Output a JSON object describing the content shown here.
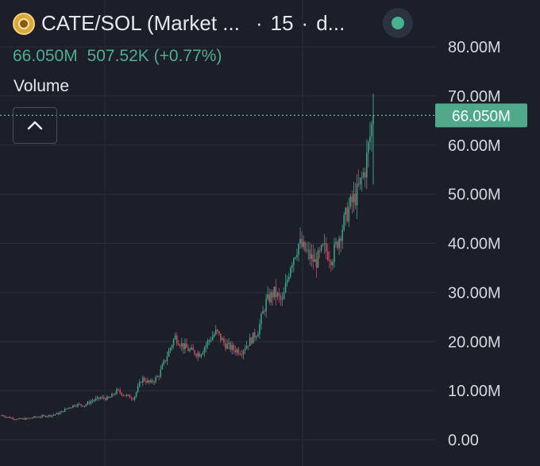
{
  "header": {
    "pair": "CATE/SOL (Market ...",
    "interval": "15",
    "extra": "d..."
  },
  "ohlc": {
    "value": "66.050M",
    "change": "507.52K (+0.77%)"
  },
  "volume_label": "Volume",
  "colors": {
    "background": "#1c1e2a",
    "up": "#3ea085",
    "down": "#c94a5b",
    "text": "#d6d8de",
    "price_tag": "#4fa98a"
  },
  "icons": [
    "coin-logo-icon",
    "status-dot-icon",
    "chevron-up-icon"
  ],
  "chart_data": {
    "type": "candlestick",
    "y_ticks": [
      "0.00",
      "10.00M",
      "20.00M",
      "30.00M",
      "40.00M",
      "50.00M",
      "60.00M",
      "70.00M",
      "80.00M"
    ],
    "ylim": [
      0,
      80000000
    ],
    "last_price": 66050000,
    "last_price_label": "66.050M",
    "grid": true,
    "close_series_millions": [
      5.0,
      4.5,
      4.2,
      4.3,
      4.6,
      4.8,
      5.0,
      5.4,
      6.5,
      7.2,
      7.0,
      8.0,
      8.5,
      8.4,
      10.0,
      9.0,
      8.5,
      12.5,
      11.5,
      13.0,
      17.0,
      21.0,
      19.0,
      18.0,
      17.5,
      20.0,
      22.0,
      19.5,
      18.5,
      18.0,
      20.0,
      22.0,
      28.0,
      30.0,
      28.0,
      36.0,
      40.0,
      38.0,
      36.0,
      39.0,
      37.0,
      42.0,
      47.0,
      50.0,
      55.0,
      66.05
    ]
  }
}
